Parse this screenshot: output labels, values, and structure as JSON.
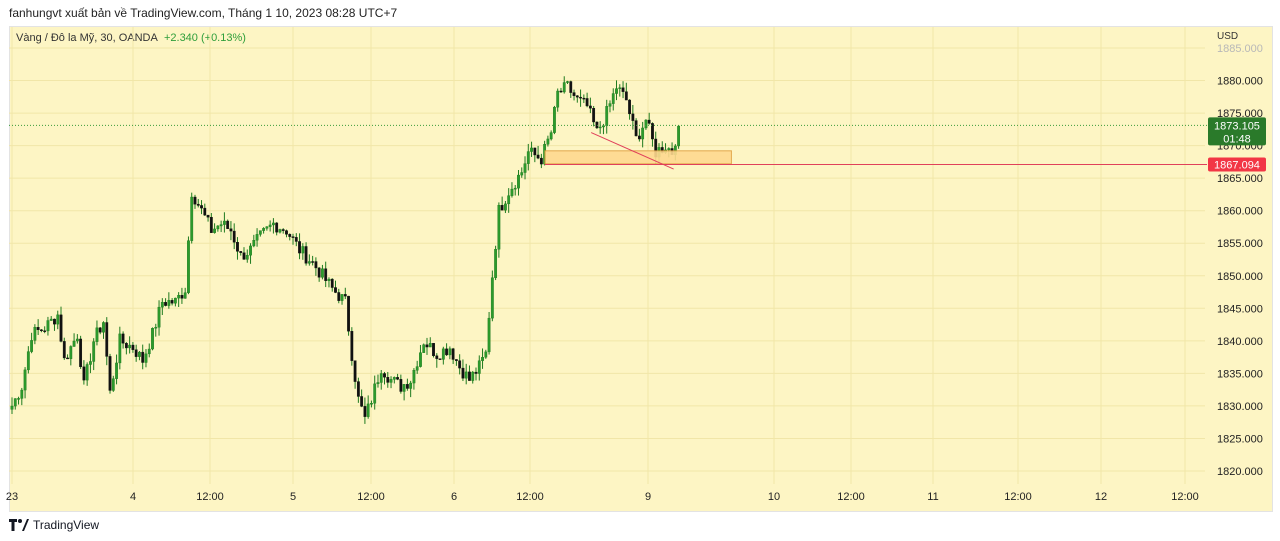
{
  "header": {
    "published_by": "fanhungvt xuất bản về TradingView.com, Tháng 1 10, 2023 08:28 UTC+7"
  },
  "symbol": {
    "name": "Vàng / Đô la Mỹ, 30, OANDA",
    "change": "+2.340 (+0.13%)"
  },
  "footer": {
    "brand": "TradingView"
  },
  "colors": {
    "background": "#fdf5c4",
    "candle": "#1e8a1e",
    "current_price_badge": "#2a7a2a",
    "level_badge": "#f23645",
    "zone_fill": "#ffd791",
    "zone_border": "#e0a040",
    "trendline": "#e0405a"
  },
  "chart_data": {
    "type": "candlestick",
    "currency_label": "USD",
    "ylim": [
      1817.0,
      1887.0
    ],
    "y_ticks": [
      "1820.000",
      "1825.000",
      "1830.000",
      "1835.000",
      "1840.000",
      "1845.000",
      "1850.000",
      "1855.000",
      "1860.000",
      "1865.000",
      "1870.000",
      "1875.000",
      "1880.000",
      "1885.000"
    ],
    "x_ticks": [
      "23",
      "4",
      "12:00",
      "5",
      "12:00",
      "6",
      "12:00",
      "9",
      "10",
      "12:00",
      "11",
      "12:00",
      "12",
      "12:00"
    ],
    "current_price": {
      "value": 1873.105,
      "label": "1873.105",
      "countdown": "01:48"
    },
    "level_line": {
      "value": 1867.094,
      "label": "1867.094"
    },
    "zone": {
      "low": 1867.2,
      "high": 1869.2,
      "x_start": 161.5,
      "x_end": 218
    },
    "trendline": {
      "x_start": 175.5,
      "y_start": 1872.0,
      "x_end": 200.5,
      "y_end": 1866.4
    },
    "close_path": [
      {
        "x": 0,
        "y": 1830
      },
      {
        "x": 3,
        "y": 1833
      },
      {
        "x": 6,
        "y": 1841
      },
      {
        "x": 10,
        "y": 1842
      },
      {
        "x": 14,
        "y": 1844
      },
      {
        "x": 16,
        "y": 1837
      },
      {
        "x": 20,
        "y": 1841
      },
      {
        "x": 22,
        "y": 1833
      },
      {
        "x": 25,
        "y": 1840
      },
      {
        "x": 28,
        "y": 1843
      },
      {
        "x": 30,
        "y": 1832
      },
      {
        "x": 33,
        "y": 1840
      },
      {
        "x": 37,
        "y": 1839
      },
      {
        "x": 40,
        "y": 1837
      },
      {
        "x": 43,
        "y": 1841
      },
      {
        "x": 46,
        "y": 1846
      },
      {
        "x": 50,
        "y": 1846
      },
      {
        "x": 53,
        "y": 1848
      },
      {
        "x": 55,
        "y": 1863
      },
      {
        "x": 58,
        "y": 1860
      },
      {
        "x": 61,
        "y": 1857
      },
      {
        "x": 64,
        "y": 1858
      },
      {
        "x": 67,
        "y": 1857
      },
      {
        "x": 70,
        "y": 1853
      },
      {
        "x": 73,
        "y": 1854
      },
      {
        "x": 76,
        "y": 1856
      },
      {
        "x": 80,
        "y": 1858
      },
      {
        "x": 84,
        "y": 1857
      },
      {
        "x": 88,
        "y": 1854
      },
      {
        "x": 92,
        "y": 1852
      },
      {
        "x": 95,
        "y": 1850
      },
      {
        "x": 98,
        "y": 1848
      },
      {
        "x": 102,
        "y": 1846
      },
      {
        "x": 104,
        "y": 1838
      },
      {
        "x": 106,
        "y": 1831
      },
      {
        "x": 108,
        "y": 1828
      },
      {
        "x": 110,
        "y": 1831
      },
      {
        "x": 113,
        "y": 1836
      },
      {
        "x": 116,
        "y": 1834
      },
      {
        "x": 119,
        "y": 1833
      },
      {
        "x": 122,
        "y": 1834
      },
      {
        "x": 126,
        "y": 1840
      },
      {
        "x": 130,
        "y": 1838
      },
      {
        "x": 134,
        "y": 1839
      },
      {
        "x": 137,
        "y": 1836
      },
      {
        "x": 140,
        "y": 1834
      },
      {
        "x": 143,
        "y": 1836
      },
      {
        "x": 145,
        "y": 1838
      },
      {
        "x": 146.5,
        "y": 1850
      },
      {
        "x": 148,
        "y": 1860
      },
      {
        "x": 151,
        "y": 1863
      },
      {
        "x": 155,
        "y": 1866
      },
      {
        "x": 157,
        "y": 1869
      },
      {
        "x": 161,
        "y": 1868
      },
      {
        "x": 164,
        "y": 1872
      },
      {
        "x": 166,
        "y": 1878
      },
      {
        "x": 169,
        "y": 1879
      },
      {
        "x": 172,
        "y": 1877
      },
      {
        "x": 175,
        "y": 1876
      },
      {
        "x": 178,
        "y": 1872
      },
      {
        "x": 181,
        "y": 1875
      },
      {
        "x": 184,
        "y": 1879
      },
      {
        "x": 187,
        "y": 1877
      },
      {
        "x": 190,
        "y": 1871
      },
      {
        "x": 193,
        "y": 1874
      },
      {
        "x": 196,
        "y": 1869
      },
      {
        "x": 199,
        "y": 1870
      },
      {
        "x": 200.5,
        "y": 1869
      },
      {
        "x": 202,
        "y": 1873
      }
    ]
  }
}
